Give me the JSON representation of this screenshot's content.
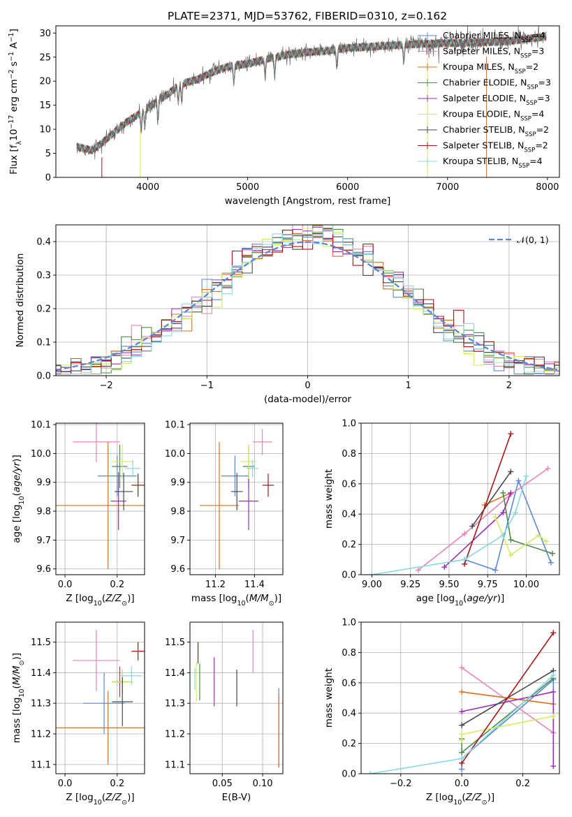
{
  "figure_title": "PLATE=2371, MJD=53762, FIBERID=0310, z=0.162",
  "colors": {
    "Chabrier MILES": "#5b87d6",
    "Salpeter MILES": "#e585b6",
    "Kroupa MILES": "#dc6f1c",
    "Chabrier ELODIE": "#4b8b4b",
    "Salpeter ELODIE": "#9731b5",
    "Kroupa ELODIE": "#d4ea60",
    "Chabrier STELIB": "#474747",
    "Salpeter STELIB": "#a81515",
    "Kroupa STELIB": "#86d9df",
    "grid": "#b0b0b0",
    "spectrum": "#6b6b6b"
  },
  "chart_data": [
    {
      "id": "spectrum",
      "type": "line",
      "title": "PLATE=2371, MJD=53762, FIBERID=0310, z=0.162",
      "xlabel": "wavelength [Angstrom, rest frame]",
      "ylabel": "Flux [f_λ 10^-17 erg cm^-2 s^-1 A^-1]",
      "xlim": [
        3080,
        8120
      ],
      "ylim": [
        0,
        31.5
      ],
      "xticks": [
        "4000",
        "5000",
        "6000",
        "7000",
        "8000"
      ],
      "yticks": [
        "0",
        "5",
        "10",
        "15",
        "20",
        "25",
        "30"
      ],
      "grid": false,
      "legend_position": "upper-right",
      "continuum_x": [
        3300,
        3450,
        3600,
        3700,
        3800,
        3900,
        4000,
        4100,
        4200,
        4300,
        4400,
        4500,
        4600,
        4700,
        4800,
        5000,
        5200,
        5400,
        5600,
        5800,
        6000,
        6200,
        6400,
        6600,
        6800,
        7000,
        7200,
        7400,
        7600,
        7800,
        8000
      ],
      "continuum_y": [
        6.3,
        5.6,
        8.2,
        10.0,
        11.7,
        13.0,
        14.4,
        15.9,
        17.3,
        19.0,
        19.8,
        20.4,
        21.4,
        22.3,
        23.0,
        23.6,
        24.7,
        25.5,
        26.0,
        26.3,
        26.9,
        27.1,
        27.4,
        27.6,
        27.8,
        27.9,
        28.0,
        28.1,
        28.3,
        28.8,
        29.3
      ],
      "absorption_lines": [
        3934,
        3969,
        4102,
        4304,
        4340,
        4861,
        5175,
        5270,
        5893,
        6563
      ],
      "legend": [
        {
          "label": "Chabrier MILES, N",
          "sub": "SSP",
          "suffix": "=4"
        },
        {
          "label": "Salpeter MILES, N",
          "sub": "SSP",
          "suffix": "=3"
        },
        {
          "label": "Kroupa MILES, N",
          "sub": "SSP",
          "suffix": "=2"
        },
        {
          "label": "Chabrier ELODIE, N",
          "sub": "SSP",
          "suffix": "=3"
        },
        {
          "label": "Salpeter ELODIE, N",
          "sub": "SSP",
          "suffix": "=3"
        },
        {
          "label": "Kroupa ELODIE, N",
          "sub": "SSP",
          "suffix": "=4"
        },
        {
          "label": "Chabrier STELIB, N",
          "sub": "SSP",
          "suffix": "=2"
        },
        {
          "label": "Salpeter STELIB, N",
          "sub": "SSP",
          "suffix": "=2"
        },
        {
          "label": "Kroupa STELIB, N",
          "sub": "SSP",
          "suffix": "=4"
        }
      ]
    },
    {
      "id": "residuals",
      "type": "step-histogram",
      "xlabel": "(data-model)/error",
      "ylabel": "Normed distribution",
      "xlim": [
        -2.5,
        2.5
      ],
      "ylim": [
        0,
        0.45
      ],
      "xticks": [
        "−2",
        "−1",
        "0",
        "1",
        "2"
      ],
      "yticks": [
        "0.0",
        "0.1",
        "0.2",
        "0.3",
        "0.4"
      ],
      "grid": true,
      "bin_width": 0.1,
      "reference_label": "𝒩(0, 1)",
      "legend_position": "upper-right"
    },
    {
      "id": "age-vs-Z",
      "type": "errorbar",
      "xlabel": "Z [log10(Z/Z⊙)]",
      "ylabel": "age  [log10(age/yr)]",
      "xlim": [
        -0.035,
        0.305
      ],
      "ylim": [
        9.58,
        10.105
      ],
      "xticks": [
        "0.0",
        "0.2"
      ],
      "yticks": [
        "9.6",
        "9.7",
        "9.8",
        "9.9",
        "10.0",
        "10.1"
      ],
      "grid": true,
      "points": [
        {
          "model": "Chabrier MILES",
          "x": 0.2,
          "xerr": 0.075,
          "y": 9.922,
          "yerr": 0.07
        },
        {
          "model": "Salpeter MILES",
          "x": 0.12,
          "xerr": 0.09,
          "y": 10.04,
          "yerr": 0.07
        },
        {
          "model": "Kroupa MILES",
          "x": 0.165,
          "xerr": 0.2,
          "y": 9.82,
          "yerr": 0.22
        },
        {
          "model": "Chabrier ELODIE",
          "x": 0.21,
          "xerr": 0.03,
          "y": 9.955,
          "yerr": 0.075
        },
        {
          "model": "Salpeter ELODIE",
          "x": 0.205,
          "xerr": 0.03,
          "y": 9.835,
          "yerr": 0.1
        },
        {
          "model": "Kroupa ELODIE",
          "x": 0.22,
          "xerr": 0.04,
          "y": 9.972,
          "yerr": 0.06
        },
        {
          "model": "Chabrier STELIB",
          "x": 0.225,
          "xerr": 0.035,
          "y": 9.868,
          "yerr": 0.065
        },
        {
          "model": "Salpeter STELIB",
          "x": 0.28,
          "xerr": 0.025,
          "y": 9.89,
          "yerr": 0.04
        },
        {
          "model": "Kroupa STELIB",
          "x": 0.26,
          "xerr": 0.03,
          "y": 9.948,
          "yerr": 0.03
        }
      ]
    },
    {
      "id": "age-vs-mass",
      "type": "errorbar",
      "xlabel": "mass [log10(M/M⊙)]",
      "ylabel": "",
      "xlim": [
        11.07,
        11.545
      ],
      "ylim": [
        9.58,
        10.105
      ],
      "xticks": [
        "11.2",
        "11.4"
      ],
      "yticks": [
        "9.6",
        "9.7",
        "9.8",
        "9.9",
        "10.0",
        "10.1"
      ],
      "grid": true,
      "points": [
        {
          "model": "Chabrier MILES",
          "x": 11.3,
          "xerr": 0.07,
          "y": 9.922,
          "yerr": 0.07
        },
        {
          "model": "Salpeter MILES",
          "x": 11.44,
          "xerr": 0.05,
          "y": 10.04,
          "yerr": 0.045
        },
        {
          "model": "Kroupa MILES",
          "x": 11.22,
          "xerr": 0.1,
          "y": 9.82,
          "yerr": 0.22
        },
        {
          "model": "Chabrier ELODIE",
          "x": 11.37,
          "xerr": 0.03,
          "y": 9.955,
          "yerr": 0.075
        },
        {
          "model": "Salpeter ELODIE",
          "x": 11.37,
          "xerr": 0.05,
          "y": 9.835,
          "yerr": 0.1
        },
        {
          "model": "Kroupa ELODIE",
          "x": 11.37,
          "xerr": 0.04,
          "y": 9.972,
          "yerr": 0.06
        },
        {
          "model": "Chabrier STELIB",
          "x": 11.31,
          "xerr": 0.03,
          "y": 9.868,
          "yerr": 0.065
        },
        {
          "model": "Salpeter STELIB",
          "x": 11.47,
          "xerr": 0.03,
          "y": 9.89,
          "yerr": 0.04
        },
        {
          "model": "Kroupa STELIB",
          "x": 11.39,
          "xerr": 0.03,
          "y": 9.948,
          "yerr": 0.03
        }
      ]
    },
    {
      "id": "weight-vs-age",
      "type": "line",
      "xlabel": "age  [log10(age/yr)]",
      "ylabel": "mass weight",
      "xlim": [
        8.93,
        10.215
      ],
      "ylim": [
        0,
        1.0
      ],
      "xticks": [
        "9.00",
        "9.25",
        "9.50",
        "9.75",
        "10.00"
      ],
      "yticks": [
        "0.0",
        "0.2",
        "0.4",
        "0.6",
        "0.8",
        "1.0"
      ],
      "grid": true,
      "series": [
        {
          "model": "Chabrier MILES",
          "x": [
            9.6,
            9.8,
            9.95,
            10.16
          ],
          "y": [
            0.1,
            0.03,
            0.62,
            0.08
          ]
        },
        {
          "model": "Salpeter MILES",
          "x": [
            9.3,
            9.6,
            9.9,
            10.14
          ],
          "y": [
            0.03,
            0.27,
            0.53,
            0.7
          ]
        },
        {
          "model": "Kroupa MILES",
          "x": [
            9.73,
            9.9
          ],
          "y": [
            0.46,
            0.54
          ]
        },
        {
          "model": "Chabrier ELODIE",
          "x": [
            9.85,
            9.9,
            10.17
          ],
          "y": [
            0.54,
            0.23,
            0.14
          ]
        },
        {
          "model": "Salpeter ELODIE",
          "x": [
            9.47,
            9.85,
            9.9
          ],
          "y": [
            0.05,
            0.41,
            0.54
          ]
        },
        {
          "model": "Kroupa ELODIE",
          "x": [
            9.8,
            9.9,
            10.08,
            10.13
          ],
          "y": [
            0.38,
            0.13,
            0.26,
            0.22
          ]
        },
        {
          "model": "Chabrier STELIB",
          "x": [
            9.65,
            9.9
          ],
          "y": [
            0.32,
            0.68
          ]
        },
        {
          "model": "Salpeter STELIB",
          "x": [
            9.6,
            9.9
          ],
          "y": [
            0.07,
            0.93
          ]
        },
        {
          "model": "Kroupa STELIB",
          "x": [
            9.0,
            9.6,
            9.85,
            9.93,
            10.0
          ],
          "y": [
            0.0,
            0.1,
            0.26,
            0.41,
            0.65
          ]
        }
      ]
    },
    {
      "id": "mass-vs-Z",
      "type": "errorbar",
      "xlabel": "Z [log10(Z/Z⊙)]",
      "ylabel": "mass [log10(M/M⊙)]",
      "xlim": [
        -0.035,
        0.305
      ],
      "ylim": [
        11.07,
        11.565
      ],
      "xticks": [
        "0.0",
        "0.2"
      ],
      "yticks": [
        "11.1",
        "11.2",
        "11.3",
        "11.4",
        "11.5"
      ],
      "grid": true,
      "points": [
        {
          "model": "Chabrier MILES",
          "x": 0.15,
          "xerr": 0.08,
          "y": 11.3,
          "yerr": 0.1
        },
        {
          "model": "Salpeter MILES",
          "x": 0.12,
          "xerr": 0.09,
          "y": 11.44,
          "yerr": 0.1
        },
        {
          "model": "Kroupa MILES",
          "x": 0.165,
          "xerr": 0.2,
          "y": 11.22,
          "yerr": 0.12
        },
        {
          "model": "Chabrier ELODIE",
          "x": 0.22,
          "xerr": 0.04,
          "y": 11.37,
          "yerr": 0.04
        },
        {
          "model": "Salpeter ELODIE",
          "x": 0.21,
          "xerr": 0.03,
          "y": 11.37,
          "yerr": 0.05
        },
        {
          "model": "Kroupa ELODIE",
          "x": 0.22,
          "xerr": 0.04,
          "y": 11.37,
          "yerr": 0.04
        },
        {
          "model": "Chabrier STELIB",
          "x": 0.22,
          "xerr": 0.04,
          "y": 11.305,
          "yerr": 0.08
        },
        {
          "model": "Salpeter STELIB",
          "x": 0.28,
          "xerr": 0.025,
          "y": 11.47,
          "yerr": 0.03
        },
        {
          "model": "Kroupa STELIB",
          "x": 0.255,
          "xerr": 0.04,
          "y": 11.39,
          "yerr": 0.03
        }
      ]
    },
    {
      "id": "mass-vs-ebv",
      "type": "errorbar",
      "xlabel": "E(B-V)",
      "ylabel": "",
      "xlim": [
        0.01,
        0.125
      ],
      "ylim": [
        11.07,
        11.565
      ],
      "xticks": [
        "0.05",
        "0.10"
      ],
      "yticks": [
        "11.1",
        "11.2",
        "11.3",
        "11.4",
        "11.5"
      ],
      "grid": true,
      "points": [
        {
          "model": "Chabrier MILES",
          "x": 0.12,
          "xerr": 0,
          "y": 11.22,
          "yerr": 0.13
        },
        {
          "model": "Salpeter MILES",
          "x": 0.088,
          "xerr": 0,
          "y": 11.47,
          "yerr": 0.07
        },
        {
          "model": "Kroupa MILES",
          "x": 0.12,
          "xerr": 0,
          "y": 11.21,
          "yerr": 0.12
        },
        {
          "model": "Chabrier ELODIE",
          "x": 0.022,
          "xerr": 0,
          "y": 11.37,
          "yerr": 0.06
        },
        {
          "model": "Salpeter ELODIE",
          "x": 0.04,
          "xerr": 0,
          "y": 11.37,
          "yerr": 0.08
        },
        {
          "model": "Kroupa ELODIE",
          "x": 0.018,
          "xerr": 0,
          "y": 11.37,
          "yerr": 0.065
        },
        {
          "model": "Chabrier STELIB",
          "x": 0.068,
          "xerr": 0,
          "y": 11.35,
          "yerr": 0.06
        },
        {
          "model": "Salpeter STELIB",
          "x": 0.02,
          "xerr": 0,
          "y": 11.465,
          "yerr": 0.035
        },
        {
          "model": "Kroupa STELIB",
          "x": 0.016,
          "xerr": 0,
          "y": 11.38,
          "yerr": 0.035
        }
      ]
    },
    {
      "id": "weight-vs-Z",
      "type": "line",
      "xlabel": "Z [log10(Z/Z⊙)]",
      "ylabel": "mass weight",
      "xlim": [
        -0.33,
        0.32
      ],
      "ylim": [
        0,
        1.0
      ],
      "xticks": [
        "−0.2",
        "0.0",
        "0.2"
      ],
      "yticks": [
        "0.0",
        "0.2",
        "0.4",
        "0.6",
        "0.8",
        "1.0"
      ],
      "grid": true,
      "series": [
        {
          "model": "Chabrier MILES",
          "x": [
            0.0,
            0.0,
            0.3,
            0.3
          ],
          "y": [
            0.03,
            0.1,
            0.62,
            0.27
          ]
        },
        {
          "model": "Salpeter MILES",
          "x": [
            0.0,
            0.3
          ],
          "y": [
            0.7,
            0.27
          ]
        },
        {
          "model": "Kroupa MILES",
          "x": [
            0.0,
            0.3
          ],
          "y": [
            0.54,
            0.46
          ]
        },
        {
          "model": "Chabrier ELODIE",
          "x": [
            0.0,
            0.0,
            0.3
          ],
          "y": [
            0.23,
            0.14,
            0.63
          ]
        },
        {
          "model": "Salpeter ELODIE",
          "x": [
            0.0,
            0.3,
            0.3
          ],
          "y": [
            0.41,
            0.54,
            0.05
          ]
        },
        {
          "model": "Kroupa ELODIE",
          "x": [
            0.0,
            0.0,
            0.3
          ],
          "y": [
            0.22,
            0.26,
            0.38
          ]
        },
        {
          "model": "Chabrier STELIB",
          "x": [
            0.0,
            0.3
          ],
          "y": [
            0.32,
            0.68
          ]
        },
        {
          "model": "Salpeter STELIB",
          "x": [
            0.0,
            0.3
          ],
          "y": [
            0.07,
            0.93
          ]
        },
        {
          "model": "Kroupa STELIB",
          "x": [
            -0.3,
            0.0,
            0.3
          ],
          "y": [
            0.0,
            0.1,
            0.65
          ]
        }
      ]
    }
  ]
}
